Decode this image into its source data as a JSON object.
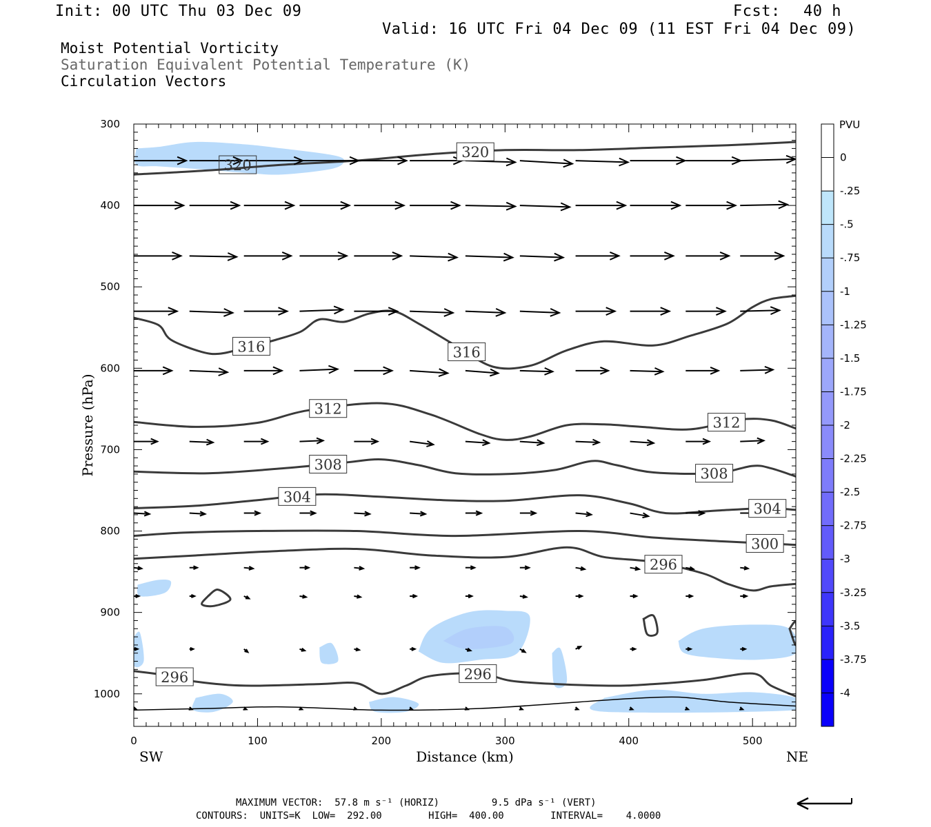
{
  "header": {
    "init": "Init: 00 UTC Thu 03 Dec 09",
    "fcst_label": "Fcst:",
    "fcst_value": "40 h",
    "valid": "Valid: 16 UTC Fri 04 Dec 09 (11 EST Fri 04 Dec 09)"
  },
  "titles": [
    "Moist Potential Vorticity",
    "Saturation Equivalent Potential Temperature (K)",
    "Circulation Vectors"
  ],
  "footer": {
    "max_vector": "MAXIMUM VECTOR:  57.8 m s⁻¹ (HORIZ)         9.5 dPa s⁻¹ (VERT)",
    "contours": "CONTOURS:  UNITS=K  LOW=  292.00        HIGH=  400.00        INTERVAL=    4.0000"
  },
  "chart_data": {
    "type": "cross-section",
    "xlabel": "Distance (km)",
    "ylabel": "Pressure (hPa)",
    "xlim": [
      0,
      535
    ],
    "ylim": [
      1040,
      300
    ],
    "x_ticks": [
      "0",
      "100",
      "200",
      "300",
      "400",
      "500"
    ],
    "y_ticks": [
      "300",
      "400",
      "500",
      "600",
      "700",
      "800",
      "900",
      "1000"
    ],
    "x_end_left": "SW",
    "x_end_right": "NE",
    "colorbar": {
      "units": "PVU",
      "labels": [
        "0",
        "-.25",
        "-.5",
        "-.75",
        "-1",
        "-1.25",
        "-1.5",
        "-1.75",
        "-2",
        "-2.25",
        "-2.5",
        "-2.75",
        "-3",
        "-3.25",
        "-3.5",
        "-3.75",
        "-4"
      ],
      "colors": [
        "#ffffff",
        "#ffffff",
        "#bfe6fb",
        "#b9dbfb",
        "#b2cffb",
        "#abc2fb",
        "#a4b5fb",
        "#9ca7fb",
        "#9499fb",
        "#8a8bfb",
        "#7e7cfb",
        "#716cfb",
        "#625bfb",
        "#5149fb",
        "#3e36fb",
        "#2a22fb",
        "#0a00fb"
      ]
    },
    "contours": [
      {
        "label": "320",
        "points": [
          [
            0,
            362
          ],
          [
            60,
            357
          ],
          [
            120,
            350
          ],
          [
            180,
            345
          ],
          [
            240,
            337
          ],
          [
            300,
            332
          ],
          [
            360,
            332
          ],
          [
            420,
            329
          ],
          [
            480,
            326
          ],
          [
            535,
            322
          ]
        ]
      },
      {
        "label": "316",
        "points": [
          [
            0,
            538
          ],
          [
            20,
            547
          ],
          [
            30,
            565
          ],
          [
            55,
            580
          ],
          [
            70,
            582
          ],
          [
            90,
            575
          ],
          [
            115,
            565
          ],
          [
            135,
            555
          ],
          [
            150,
            540
          ],
          [
            170,
            543
          ],
          [
            190,
            533
          ],
          [
            210,
            530
          ],
          [
            230,
            545
          ],
          [
            260,
            572
          ],
          [
            290,
            598
          ],
          [
            320,
            597
          ],
          [
            350,
            578
          ],
          [
            380,
            567
          ],
          [
            420,
            572
          ],
          [
            450,
            560
          ],
          [
            480,
            545
          ],
          [
            500,
            525
          ],
          [
            515,
            515
          ],
          [
            535,
            511
          ]
        ]
      },
      {
        "label": "312",
        "points": [
          [
            0,
            666
          ],
          [
            50,
            672
          ],
          [
            100,
            667
          ],
          [
            140,
            652
          ],
          [
            200,
            643
          ],
          [
            240,
            657
          ],
          [
            280,
            681
          ],
          [
            300,
            688
          ],
          [
            320,
            684
          ],
          [
            350,
            670
          ],
          [
            380,
            669
          ],
          [
            410,
            672
          ],
          [
            450,
            675
          ],
          [
            490,
            663
          ],
          [
            515,
            664
          ],
          [
            535,
            674
          ]
        ]
      },
      {
        "label": "308",
        "points": [
          [
            0,
            727
          ],
          [
            60,
            729
          ],
          [
            120,
            723
          ],
          [
            170,
            716
          ],
          [
            200,
            712
          ],
          [
            230,
            719
          ],
          [
            260,
            729
          ],
          [
            300,
            730
          ],
          [
            340,
            725
          ],
          [
            370,
            714
          ],
          [
            390,
            719
          ],
          [
            420,
            728
          ],
          [
            470,
            729
          ],
          [
            500,
            720
          ],
          [
            515,
            723
          ],
          [
            535,
            733
          ]
        ]
      },
      {
        "label": "304",
        "points": [
          [
            0,
            772
          ],
          [
            50,
            769
          ],
          [
            100,
            762
          ],
          [
            150,
            755
          ],
          [
            200,
            758
          ],
          [
            250,
            762
          ],
          [
            300,
            763
          ],
          [
            360,
            756
          ],
          [
            400,
            766
          ],
          [
            430,
            778
          ],
          [
            470,
            775
          ],
          [
            510,
            772
          ],
          [
            535,
            774
          ]
        ]
      },
      {
        "label": "300",
        "points": [
          [
            0,
            806
          ],
          [
            40,
            802
          ],
          [
            100,
            800
          ],
          [
            180,
            800
          ],
          [
            260,
            806
          ],
          [
            360,
            800
          ],
          [
            420,
            808
          ],
          [
            480,
            813
          ],
          [
            535,
            817
          ]
        ]
      },
      {
        "label": "296",
        "points": [
          [
            0,
            834
          ],
          [
            50,
            830
          ],
          [
            110,
            825
          ],
          [
            180,
            822
          ],
          [
            240,
            830
          ],
          [
            300,
            832
          ],
          [
            350,
            820
          ],
          [
            380,
            832
          ],
          [
            420,
            838
          ],
          [
            460,
            852
          ],
          [
            480,
            865
          ],
          [
            500,
            873
          ],
          [
            515,
            868
          ],
          [
            535,
            865
          ]
        ]
      },
      {
        "label": "296",
        "points": [
          [
            0,
            972
          ],
          [
            30,
            978
          ],
          [
            50,
            985
          ],
          [
            90,
            990
          ],
          [
            150,
            988
          ],
          [
            180,
            987
          ],
          [
            200,
            1000
          ],
          [
            220,
            990
          ],
          [
            240,
            978
          ],
          [
            280,
            975
          ],
          [
            310,
            985
          ],
          [
            380,
            990
          ],
          [
            420,
            988
          ],
          [
            460,
            983
          ],
          [
            500,
            975
          ],
          [
            515,
            990
          ],
          [
            535,
            1003
          ]
        ]
      },
      {
        "label": "",
        "points": [
          [
            0,
            1020
          ],
          [
            60,
            1018
          ],
          [
            120,
            1016
          ],
          [
            200,
            1020
          ],
          [
            280,
            1018
          ],
          [
            360,
            1010
          ],
          [
            400,
            1006
          ],
          [
            440,
            1004
          ],
          [
            480,
            1010
          ],
          [
            535,
            1015
          ]
        ]
      }
    ],
    "pv_shading": [
      {
        "value": -0.5,
        "points": [
          [
            2,
            330
          ],
          [
            20,
            328
          ],
          [
            50,
            322
          ],
          [
            90,
            325
          ],
          [
            120,
            330
          ],
          [
            160,
            338
          ],
          [
            170,
            345
          ],
          [
            160,
            355
          ],
          [
            120,
            362
          ],
          [
            90,
            360
          ],
          [
            50,
            355
          ],
          [
            20,
            352
          ],
          [
            2,
            350
          ]
        ]
      },
      {
        "value": -0.5,
        "points": [
          [
            3,
            866
          ],
          [
            20,
            860
          ],
          [
            30,
            862
          ],
          [
            25,
            876
          ],
          [
            5,
            880
          ]
        ]
      },
      {
        "value": -0.5,
        "points": [
          [
            230,
            948
          ],
          [
            240,
            920
          ],
          [
            270,
            900
          ],
          [
            300,
            898
          ],
          [
            320,
            905
          ],
          [
            310,
            950
          ],
          [
            280,
            958
          ],
          [
            250,
            962
          ]
        ]
      },
      {
        "value": -0.75,
        "points": [
          [
            250,
            935
          ],
          [
            270,
            920
          ],
          [
            300,
            918
          ],
          [
            305,
            938
          ],
          [
            270,
            945
          ]
        ]
      },
      {
        "value": -0.5,
        "points": [
          [
            440,
            935
          ],
          [
            460,
            920
          ],
          [
            500,
            915
          ],
          [
            530,
            920
          ],
          [
            535,
            950
          ],
          [
            505,
            958
          ],
          [
            470,
            956
          ],
          [
            445,
            950
          ]
        ]
      },
      {
        "value": -0.5,
        "points": [
          [
            150,
            943
          ],
          [
            160,
            938
          ],
          [
            165,
            960
          ],
          [
            152,
            962
          ]
        ]
      },
      {
        "value": -0.5,
        "points": [
          [
            338,
            950
          ],
          [
            345,
            945
          ],
          [
            350,
            985
          ],
          [
            340,
            990
          ]
        ]
      },
      {
        "value": -0.5,
        "points": [
          [
            380,
            1005
          ],
          [
            420,
            995
          ],
          [
            460,
            1000
          ],
          [
            500,
            998
          ],
          [
            535,
            1005
          ],
          [
            535,
            1020
          ],
          [
            380,
            1022
          ]
        ]
      },
      {
        "value": -0.5,
        "points": [
          [
            190,
            1010
          ],
          [
            210,
            1004
          ],
          [
            230,
            1012
          ],
          [
            220,
            1022
          ],
          [
            195,
            1022
          ]
        ]
      },
      {
        "value": -0.5,
        "points": [
          [
            50,
            1005
          ],
          [
            70,
            1000
          ],
          [
            80,
            1010
          ],
          [
            65,
            1022
          ],
          [
            48,
            1020
          ]
        ]
      },
      {
        "value": -0.5,
        "points": [
          [
            0,
            930
          ],
          [
            5,
            925
          ],
          [
            8,
            960
          ],
          [
            0,
            965
          ]
        ]
      }
    ],
    "vectors": {
      "columns_km": [
        0,
        45,
        89,
        134,
        178,
        223,
        268,
        312,
        357,
        401,
        446,
        490
      ],
      "rows": [
        {
          "p": 345,
          "u": [
            40,
            40,
            45,
            45,
            40,
            40,
            38,
            40,
            40,
            42,
            42,
            42
          ],
          "w": [
            0,
            0,
            0,
            0,
            0,
            0,
            5,
            10,
            5,
            0,
            0,
            -5
          ]
        },
        {
          "p": 400,
          "u": [
            38,
            38,
            38,
            38,
            38,
            38,
            38,
            38,
            38,
            38,
            38,
            36
          ],
          "w": [
            0,
            0,
            0,
            0,
            0,
            0,
            3,
            5,
            0,
            0,
            0,
            -3
          ]
        },
        {
          "p": 462,
          "u": [
            36,
            36,
            36,
            36,
            36,
            36,
            36,
            33,
            33,
            33,
            33,
            33
          ],
          "w": [
            0,
            3,
            0,
            0,
            0,
            5,
            5,
            5,
            0,
            0,
            0,
            0
          ]
        },
        {
          "p": 530,
          "u": [
            33,
            33,
            33,
            33,
            33,
            33,
            30,
            30,
            30,
            30,
            30,
            30
          ],
          "w": [
            0,
            5,
            0,
            -5,
            0,
            5,
            5,
            5,
            0,
            0,
            0,
            -3
          ]
        },
        {
          "p": 603,
          "u": [
            29,
            29,
            29,
            29,
            29,
            29,
            25,
            25,
            25,
            25,
            25,
            25
          ],
          "w": [
            0,
            5,
            0,
            -5,
            0,
            8,
            8,
            3,
            0,
            3,
            0,
            -3
          ]
        },
        {
          "p": 690,
          "u": [
            18,
            18,
            18,
            18,
            18,
            18,
            18,
            18,
            18,
            18,
            18,
            18
          ],
          "w": [
            0,
            3,
            0,
            -3,
            0,
            10,
            5,
            5,
            3,
            5,
            0,
            -3
          ]
        },
        {
          "p": 778,
          "u": [
            12,
            12,
            12,
            12,
            12,
            12,
            12,
            12,
            12,
            14,
            14,
            14
          ],
          "w": [
            3,
            3,
            0,
            0,
            3,
            3,
            0,
            0,
            5,
            10,
            0,
            0
          ]
        },
        {
          "p": 845,
          "u": [
            6,
            6,
            7,
            7,
            7,
            7,
            7,
            7,
            7,
            7,
            6,
            6
          ],
          "w": [
            3,
            0,
            3,
            0,
            3,
            0,
            0,
            0,
            5,
            5,
            5,
            3
          ]
        },
        {
          "p": 880,
          "u": [
            4,
            4,
            4,
            5,
            5,
            5,
            5,
            5,
            5,
            5,
            5,
            5
          ],
          "w": [
            0,
            0,
            8,
            3,
            3,
            0,
            0,
            3,
            0,
            0,
            0,
            0
          ]
        },
        {
          "p": 945,
          "u": [
            3,
            3,
            3,
            4,
            4,
            4,
            4,
            4,
            4,
            4,
            4,
            4
          ],
          "w": [
            0,
            0,
            10,
            5,
            3,
            0,
            5,
            10,
            -8,
            0,
            0,
            0
          ]
        },
        {
          "p": 1018,
          "u": [
            2,
            2,
            2,
            2,
            2,
            2,
            2,
            2,
            2,
            2,
            2,
            2
          ],
          "w": [
            3,
            3,
            3,
            3,
            3,
            3,
            3,
            3,
            3,
            3,
            3,
            3
          ]
        }
      ]
    }
  }
}
